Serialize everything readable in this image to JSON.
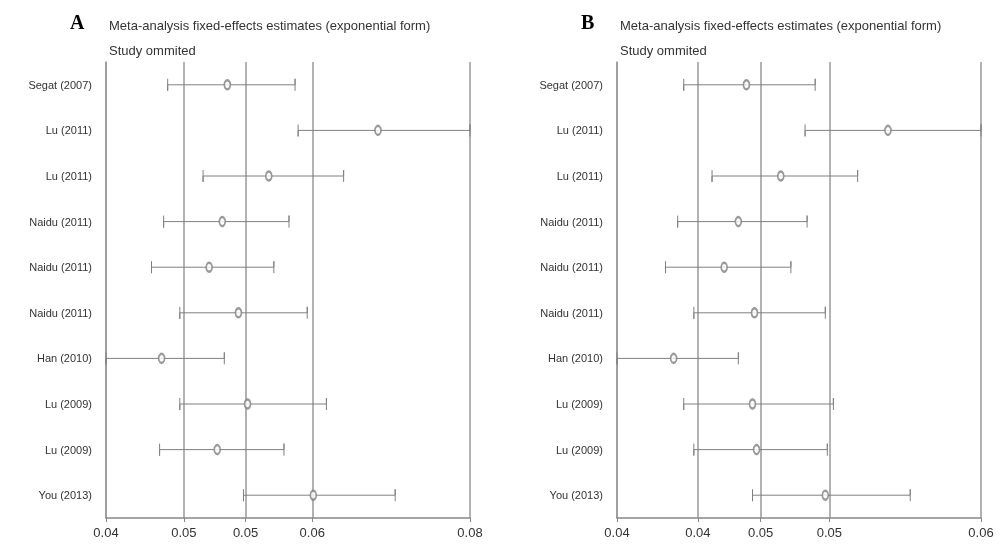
{
  "chart_data": [
    {
      "type": "scatter",
      "title": "Meta-analysis fixed-effects estimates (exponential form)",
      "ylabel": "Study ommited",
      "annotations": [
        "A"
      ],
      "orientation": "horizontal",
      "categories": [
        "Segat (2007)",
        "Lu (2011)",
        "Lu (2011)",
        "Naidu (2011)",
        "Naidu (2011)",
        "Naidu (2011)",
        "Han (2010)",
        "Lu (2009)",
        "Lu (2009)",
        "You (2013)"
      ],
      "values": [
        0.052,
        0.0669,
        0.0561,
        0.0515,
        0.0502,
        0.0531,
        0.0455,
        0.054,
        0.051,
        0.0605
      ],
      "errors": [
        [
          0.0461,
          0.0587
        ],
        [
          0.059,
          0.076
        ],
        [
          0.0496,
          0.0635
        ],
        [
          0.0457,
          0.0581
        ],
        [
          0.0445,
          0.0566
        ],
        [
          0.0473,
          0.0599
        ],
        [
          0.04,
          0.0517
        ],
        [
          0.0473,
          0.0618
        ],
        [
          0.0453,
          0.0576
        ],
        [
          0.0536,
          0.0686
        ]
      ],
      "color": "#808080",
      "marker": "circle",
      "grid": "x",
      "xlim": [
        0.04,
        0.076
      ],
      "xticks": [
        {
          "value": 0.04,
          "label": "0.04"
        },
        {
          "value": 0.0477,
          "label": "0.05"
        },
        {
          "value": 0.0538,
          "label": "0.05"
        },
        {
          "value": 0.0604,
          "label": "0.06"
        },
        {
          "value": 0.076,
          "label": "0.08"
        }
      ]
    },
    {
      "type": "scatter",
      "title": "Meta-analysis fixed-effects estimates (exponential form)",
      "ylabel": "Study ommited",
      "annotations": [
        "B"
      ],
      "orientation": "horizontal",
      "categories": [
        "Segat (2007)",
        "Lu (2011)",
        "Lu (2011)",
        "Naidu (2011)",
        "Naidu (2011)",
        "Naidu (2011)",
        "Han (2010)",
        "Lu (2009)",
        "Lu (2009)",
        "You (2013)"
      ],
      "values": [
        0.0464,
        0.0534,
        0.0481,
        0.046,
        0.0453,
        0.0468,
        0.0428,
        0.0467,
        0.0469,
        0.0503
      ],
      "errors": [
        [
          0.0433,
          0.0498
        ],
        [
          0.0493,
          0.058
        ],
        [
          0.0447,
          0.0519
        ],
        [
          0.043,
          0.0494
        ],
        [
          0.0424,
          0.0486
        ],
        [
          0.0438,
          0.0503
        ],
        [
          0.04,
          0.046
        ],
        [
          0.0433,
          0.0507
        ],
        [
          0.0438,
          0.0504
        ],
        [
          0.0467,
          0.0545
        ]
      ],
      "color": "#808080",
      "marker": "circle",
      "grid": "x",
      "xlim": [
        0.04,
        0.058
      ],
      "xticks": [
        {
          "value": 0.04,
          "label": "0.04"
        },
        {
          "value": 0.044,
          "label": "0.04"
        },
        {
          "value": 0.0471,
          "label": "0.05"
        },
        {
          "value": 0.0505,
          "label": "0.05"
        },
        {
          "value": 0.058,
          "label": "0.06"
        }
      ]
    }
  ]
}
